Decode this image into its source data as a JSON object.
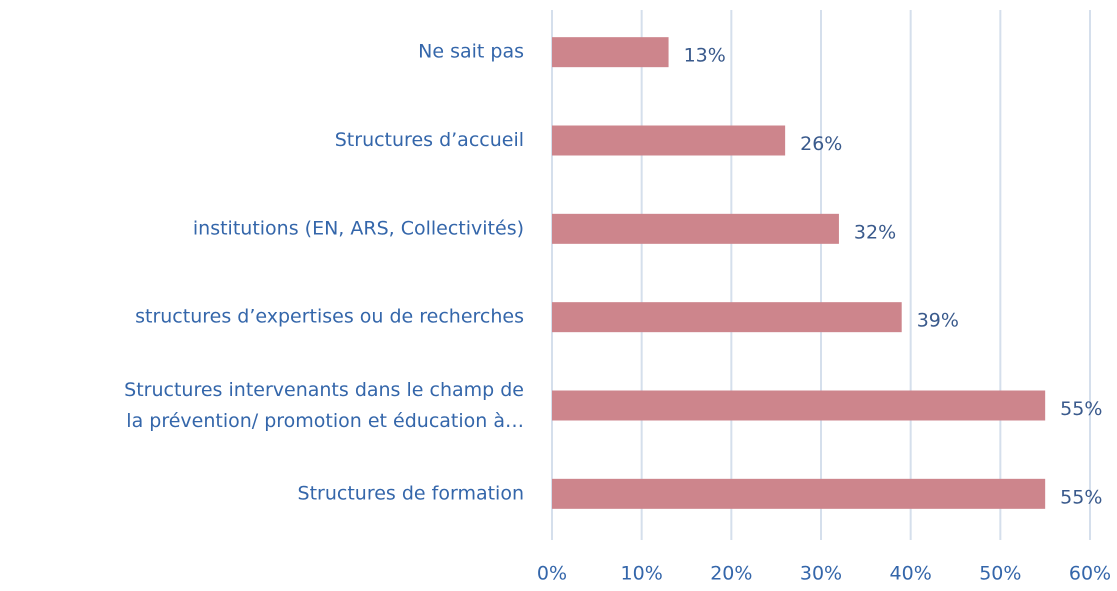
{
  "chart_data": {
    "type": "bar",
    "orientation": "horizontal",
    "categories": [
      "Ne sait pas",
      "Structures d’accueil",
      "institutions (EN, ARS, Collectivités)",
      "structures d’expertises ou de recherches",
      "Structures intervenants dans le champ de\nla prévention/ promotion et éducation à…",
      "Structures de formation"
    ],
    "values": [
      13,
      26,
      32,
      39,
      55,
      55
    ],
    "value_labels": [
      "13%",
      "26%",
      "32%",
      "39%",
      "55%",
      "55%"
    ],
    "color": "#cd858c",
    "xlim": [
      0,
      60
    ],
    "xticks": [
      {
        "value": 0,
        "label": "0%"
      },
      {
        "value": 10,
        "label": "10%"
      },
      {
        "value": 20,
        "label": "20%"
      },
      {
        "value": 30,
        "label": "30%"
      },
      {
        "value": 40,
        "label": "40%"
      },
      {
        "value": 50,
        "label": "50%"
      },
      {
        "value": 60,
        "label": "60%"
      }
    ],
    "grid": true
  }
}
